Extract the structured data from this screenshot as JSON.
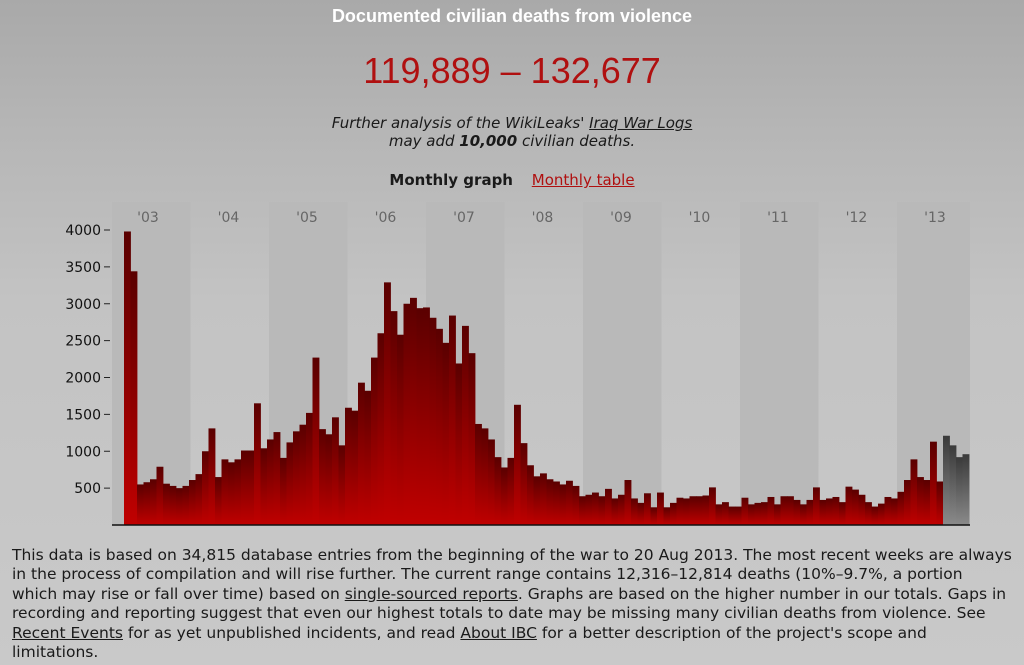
{
  "header": {
    "title": "Documented civilian deaths from violence",
    "range": "119,889 – 132,677"
  },
  "note": {
    "line1_prefix": "Further analysis of the WikiLeaks' ",
    "line1_link": "Iraq War Logs",
    "line2_prefix": "may add ",
    "line2_bold": "10,000",
    "line2_suffix": " civilian deaths."
  },
  "tabs": {
    "active": "Monthly graph",
    "link": "Monthly table"
  },
  "colors": {
    "bar": "#c00000",
    "bar_dark": "#5a0000",
    "pending_bar": "#6a6a6a",
    "range_text": "#b01010"
  },
  "chart_data": {
    "type": "bar",
    "title": "",
    "xlabel": "",
    "ylabel": "",
    "ylim": [
      0,
      4000
    ],
    "yticks": [
      500,
      1000,
      1500,
      2000,
      2500,
      3000,
      3500,
      4000
    ],
    "year_labels": [
      "'03",
      "'04",
      "'05",
      "'06",
      "'07",
      "'08",
      "'09",
      "'10",
      "'11",
      "'12",
      "'13"
    ],
    "series": [
      {
        "values": [
          3980,
          3440,
          550,
          580,
          620,
          790,
          560,
          530,
          500,
          530,
          610,
          690,
          1000,
          1310,
          650,
          890,
          850,
          890,
          1010,
          1010,
          1650,
          1040,
          1160,
          1260,
          910,
          1120,
          1270,
          1360,
          1520,
          2270,
          1300,
          1230,
          1460,
          1080,
          1590,
          1550,
          1930,
          1820,
          2270,
          2600,
          3290,
          2900,
          2580,
          3000,
          3080,
          2940,
          2950,
          2810,
          2660,
          2470,
          2840,
          2190,
          2700,
          2330,
          1370,
          1310,
          1160,
          920,
          780,
          910,
          1630,
          1110,
          810,
          660,
          700,
          620,
          590,
          550,
          600,
          530,
          390,
          410,
          440,
          390,
          490,
          360,
          410,
          610,
          360,
          300,
          430,
          240,
          440,
          240,
          300,
          370,
          360,
          390,
          390,
          400,
          510,
          280,
          310,
          250,
          250,
          370,
          280,
          300,
          310,
          380,
          280,
          390,
          390,
          340,
          280,
          340,
          510,
          340,
          360,
          380,
          310,
          520,
          480,
          410,
          310,
          250,
          290,
          380,
          360,
          450,
          610,
          890,
          650,
          610,
          1130,
          590
        ]
      },
      {
        "values": [
          1210,
          1080,
          920,
          960
        ]
      }
    ]
  },
  "footer": {
    "text1": "This data is based on 34,815 database entries from the beginning of the war to 20 Aug 2013. The most recent weeks are always in the process of compilation and will rise further. The current range contains 12,316–12,814 deaths (10%–9.7%, a portion which may rise or fall over time) based on ",
    "link1": "single-sourced reports",
    "text2": ". Graphs are based on the higher number in our totals. Gaps in recording and reporting suggest that even our highest totals to date may be missing many civilian deaths from violence. See ",
    "link2": "Recent Events",
    "text3": " for as yet unpublished incidents, and read ",
    "link3": "About IBC",
    "text4": " for a better description of the project's scope and limitations."
  }
}
